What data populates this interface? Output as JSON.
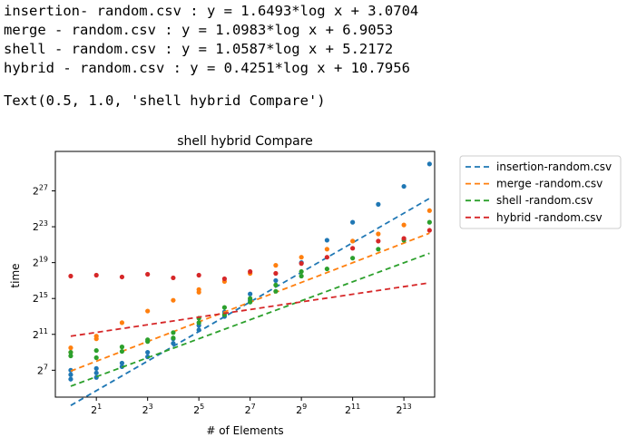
{
  "output": {
    "fit_lines": [
      "insertion- random.csv : y = 1.6493*log x + 3.0704",
      "merge - random.csv : y = 1.0983*log x + 6.9053",
      "shell - random.csv : y = 1.0587*log x + 5.2172",
      "hybrid - random.csv : y = 0.4251*log x + 10.7956"
    ],
    "repr_line": "Text(0.5, 1.0, 'shell hybrid Compare')"
  },
  "chart_data": {
    "type": "scatter",
    "title": "shell hybrid Compare",
    "xlabel": "# of Elements",
    "ylabel": "time",
    "x_scale": "log2",
    "y_scale": "log2",
    "xlim_log2": [
      -0.6,
      14.2
    ],
    "ylim_log2": [
      4.0,
      31.4
    ],
    "x_ticks": [
      1,
      3,
      5,
      7,
      9,
      11,
      13
    ],
    "x_tick_labels": [
      "2^1",
      "2^3",
      "2^5",
      "2^7",
      "2^9",
      "2^11",
      "2^13"
    ],
    "y_ticks": [
      7,
      11,
      15,
      19,
      23,
      27
    ],
    "y_tick_labels": [
      "2^7",
      "2^11",
      "2^15",
      "2^19",
      "2^23",
      "2^27"
    ],
    "grid": false,
    "legend_location": "outside upper right",
    "series": [
      {
        "name": "insertion-random.csv",
        "color": "#1f77b4",
        "points_log2": [
          [
            0,
            6.0
          ],
          [
            0,
            6.5
          ],
          [
            0,
            7.0
          ],
          [
            1,
            6.2
          ],
          [
            1,
            6.7
          ],
          [
            1,
            7.2
          ],
          [
            2,
            7.4
          ],
          [
            2,
            7.8
          ],
          [
            3,
            8.5
          ],
          [
            3,
            9.0
          ],
          [
            4,
            10.0
          ],
          [
            4,
            10.5
          ],
          [
            5,
            11.5
          ],
          [
            5,
            12.0
          ],
          [
            6,
            13.0
          ],
          [
            6,
            13.5
          ],
          [
            7,
            14.8
          ],
          [
            7,
            15.5
          ],
          [
            8,
            17.0
          ],
          [
            9,
            19.0
          ],
          [
            10,
            21.5
          ],
          [
            11,
            23.5
          ],
          [
            12,
            25.5
          ],
          [
            13,
            27.5
          ],
          [
            14,
            30.0
          ]
        ],
        "fit_log2": [
          [
            0,
            3.0704
          ],
          [
            14,
            26.1606
          ]
        ]
      },
      {
        "name": "merge -random.csv",
        "color": "#ff7f0e",
        "points_log2": [
          [
            0,
            9.0
          ],
          [
            0,
            9.5
          ],
          [
            1,
            10.5
          ],
          [
            1,
            10.8
          ],
          [
            2,
            12.3
          ],
          [
            3,
            13.6
          ],
          [
            4,
            14.8
          ],
          [
            5,
            15.7
          ],
          [
            5,
            16.0
          ],
          [
            6,
            16.9
          ],
          [
            7,
            17.8
          ],
          [
            8,
            18.7
          ],
          [
            9,
            19.6
          ],
          [
            10,
            20.5
          ],
          [
            11,
            21.4
          ],
          [
            12,
            22.2
          ],
          [
            13,
            23.2
          ],
          [
            14,
            24.8
          ]
        ],
        "fit_log2": [
          [
            0,
            6.9053
          ],
          [
            14,
            22.2815
          ]
        ]
      },
      {
        "name": "shell -random.csv",
        "color": "#2ca02c",
        "points_log2": [
          [
            0,
            8.6
          ],
          [
            0,
            9.0
          ],
          [
            1,
            8.4
          ],
          [
            1,
            9.2
          ],
          [
            2,
            9.1
          ],
          [
            2,
            9.6
          ],
          [
            3,
            10.4
          ],
          [
            3,
            10.2
          ],
          [
            4,
            10.6
          ],
          [
            4,
            11.2
          ],
          [
            5,
            12.3
          ],
          [
            5,
            12.8
          ],
          [
            6,
            13.2
          ],
          [
            6,
            14.0
          ],
          [
            7,
            14.6
          ],
          [
            7,
            15.0
          ],
          [
            8,
            15.8
          ],
          [
            8,
            16.5
          ],
          [
            9,
            17.5
          ],
          [
            9,
            18.0
          ],
          [
            10,
            18.3
          ],
          [
            11,
            19.5
          ],
          [
            12,
            20.5
          ],
          [
            13,
            21.5
          ],
          [
            14,
            23.5
          ]
        ],
        "fit_log2": [
          [
            0,
            5.2172
          ],
          [
            14,
            20.039
          ]
        ]
      },
      {
        "name": "hybrid -random.csv",
        "color": "#d62728",
        "points_log2": [
          [
            0,
            17.5
          ],
          [
            1,
            17.6
          ],
          [
            2,
            17.4
          ],
          [
            3,
            17.7
          ],
          [
            4,
            17.3
          ],
          [
            5,
            17.6
          ],
          [
            6,
            17.2
          ],
          [
            7,
            18.0
          ],
          [
            8,
            17.8
          ],
          [
            9,
            18.9
          ],
          [
            10,
            19.6
          ],
          [
            11,
            20.6
          ],
          [
            12,
            21.4
          ],
          [
            13,
            21.7
          ],
          [
            14,
            22.6
          ]
        ],
        "fit_log2": [
          [
            0,
            10.7956
          ],
          [
            14,
            16.747
          ]
        ]
      }
    ]
  }
}
